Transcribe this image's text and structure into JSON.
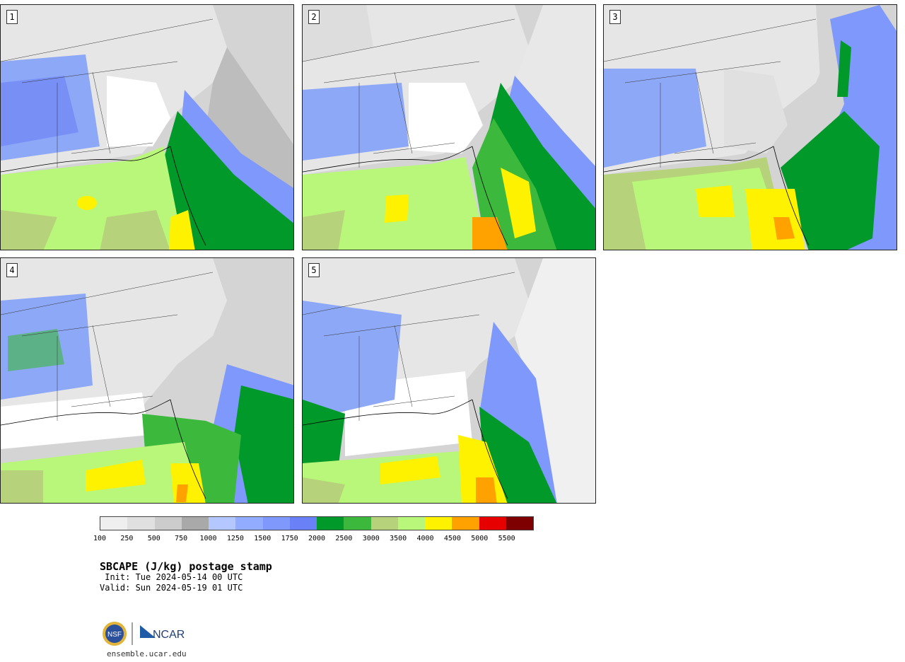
{
  "panels": [
    {
      "label": "1"
    },
    {
      "label": "2"
    },
    {
      "label": "3"
    },
    {
      "label": "4"
    },
    {
      "label": "5"
    }
  ],
  "colorbar": {
    "colors": [
      "#efefef",
      "#e0e0e0",
      "#cccccc",
      "#a9a9a9",
      "#b4c8ff",
      "#92adff",
      "#7f98fb",
      "#6a80f6",
      "#00992a",
      "#3cb83c",
      "#b6d27a",
      "#b9f77a",
      "#fff200",
      "#ffa200",
      "#e60000",
      "#7f0000"
    ],
    "ticks": [
      "100",
      "250",
      "500",
      "750",
      "1000",
      "1250",
      "1500",
      "1750",
      "2000",
      "2500",
      "3000",
      "3500",
      "4000",
      "4500",
      "5000",
      "5500"
    ]
  },
  "title": "SBCAPE (J/kg) postage stamp",
  "init": " Init: Tue 2024-05-14 00 UTC",
  "valid": "Valid: Sun 2024-05-19 01 UTC",
  "logos": {
    "left": "NSF",
    "right": "NCAR"
  },
  "url": "ensemble.ucar.edu"
}
